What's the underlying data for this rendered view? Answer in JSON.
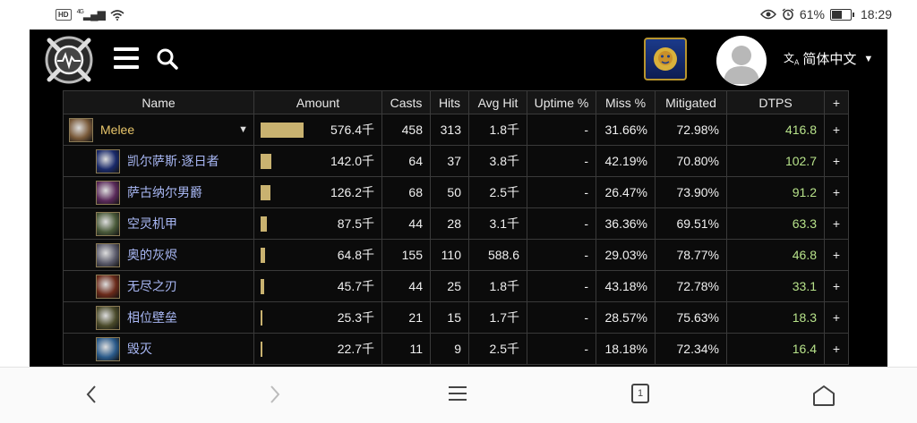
{
  "status": {
    "network": "4G",
    "battery_text": "61%",
    "time": "18:29",
    "battery_level": 0.61
  },
  "header": {
    "language": "简体中文"
  },
  "table": {
    "columns": [
      "Name",
      "Amount",
      "Casts",
      "Hits",
      "Avg Hit",
      "Uptime %",
      "Miss %",
      "Mitigated",
      "DTPS",
      "+"
    ],
    "rows": [
      {
        "name": "Melee",
        "amount": "576.4千",
        "amount_frac": 1.0,
        "casts": "458",
        "hits": "313",
        "avg": "1.8千",
        "uptime": "-",
        "miss": "31.66%",
        "mitigated": "72.98%",
        "dtps": "416.8",
        "plus": "+",
        "icon": "melee-icon",
        "icon_color": "#7a5a3a"
      },
      {
        "name": "凯尔萨斯·逐日者",
        "amount": "142.0千",
        "amount_frac": 0.246,
        "casts": "64",
        "hits": "37",
        "avg": "3.8千",
        "uptime": "-",
        "miss": "42.19%",
        "mitigated": "70.80%",
        "dtps": "102.7",
        "plus": "+",
        "icon": "kaelthas-icon",
        "icon_color": "#1a2a6a"
      },
      {
        "name": "萨古纳尔男爵",
        "amount": "126.2千",
        "amount_frac": 0.219,
        "casts": "68",
        "hits": "50",
        "avg": "2.5千",
        "uptime": "-",
        "miss": "26.47%",
        "mitigated": "73.90%",
        "dtps": "91.2",
        "plus": "+",
        "icon": "sanguinar-icon",
        "icon_color": "#5a2a5a"
      },
      {
        "name": "空灵机甲",
        "amount": "87.5千",
        "amount_frac": 0.152,
        "casts": "44",
        "hits": "28",
        "avg": "3.1千",
        "uptime": "-",
        "miss": "36.36%",
        "mitigated": "69.51%",
        "dtps": "63.3",
        "plus": "+",
        "icon": "netherstrand-icon",
        "icon_color": "#4a5a3a"
      },
      {
        "name": "奥的灰烬",
        "amount": "64.8千",
        "amount_frac": 0.112,
        "casts": "155",
        "hits": "110",
        "avg": "588.6",
        "uptime": "-",
        "miss": "29.03%",
        "mitigated": "78.77%",
        "dtps": "46.8",
        "plus": "+",
        "icon": "alar-icon",
        "icon_color": "#5a5a6a"
      },
      {
        "name": "无尽之刃",
        "amount": "45.7千",
        "amount_frac": 0.079,
        "casts": "44",
        "hits": "25",
        "avg": "1.8千",
        "uptime": "-",
        "miss": "43.18%",
        "mitigated": "72.78%",
        "dtps": "33.1",
        "plus": "+",
        "icon": "infinity-blade-icon",
        "icon_color": "#6a2a1a"
      },
      {
        "name": "相位壁垒",
        "amount": "25.3千",
        "amount_frac": 0.044,
        "casts": "21",
        "hits": "15",
        "avg": "1.7千",
        "uptime": "-",
        "miss": "28.57%",
        "mitigated": "75.63%",
        "dtps": "18.3",
        "plus": "+",
        "icon": "phaseshift-bulwark-icon",
        "icon_color": "#4a4a2a"
      },
      {
        "name": "毁灭",
        "amount": "22.7千",
        "amount_frac": 0.039,
        "casts": "11",
        "hits": "9",
        "avg": "2.5千",
        "uptime": "-",
        "miss": "18.18%",
        "mitigated": "72.34%",
        "dtps": "16.4",
        "plus": "+",
        "icon": "devastation-icon",
        "icon_color": "#2a5a8a"
      }
    ]
  },
  "nav": {
    "tabs_count": "1"
  }
}
